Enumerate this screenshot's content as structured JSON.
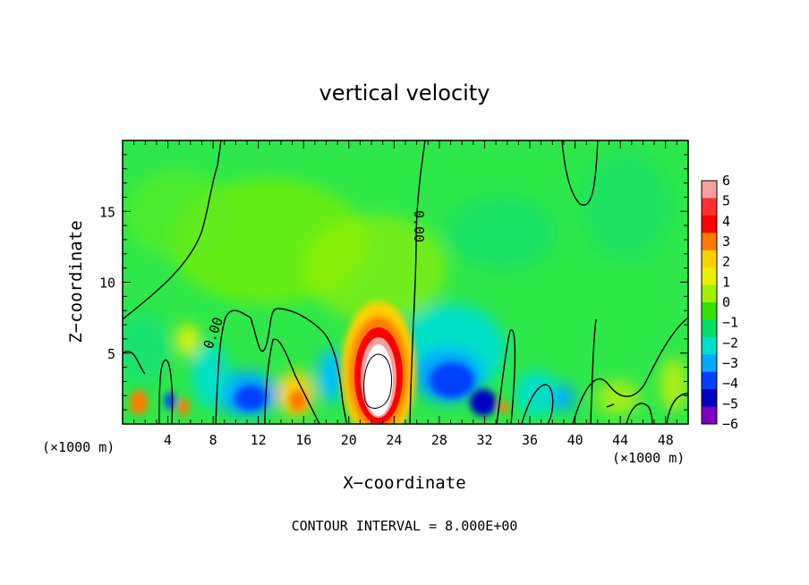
{
  "chart_data": {
    "type": "heatmap",
    "title": "vertical velocity",
    "xlabel": "X−coordinate",
    "ylabel": "Z−coordinate",
    "x_units": "(×1000 m)",
    "xlim": [
      0,
      50
    ],
    "ylim": [
      0,
      20
    ],
    "x_ticks": [
      4,
      8,
      12,
      16,
      20,
      24,
      28,
      32,
      36,
      40,
      44,
      48
    ],
    "y_ticks": [
      5,
      10,
      15
    ],
    "contour_interval_label": "CONTOUR INTERVAL = 8.000E+00",
    "contour_line_label": "0.00",
    "colorbar": {
      "levels": [
        6,
        5,
        4,
        3,
        2,
        1,
        0,
        -1,
        -2,
        -3,
        -4,
        -5,
        -6
      ],
      "colors": [
        "#f4a0a0",
        "#ff3030",
        "#ff0000",
        "#ff7a00",
        "#ffd000",
        "#e8f000",
        "#a0f000",
        "#30e000",
        "#00e060",
        "#00e0c8",
        "#00a8ff",
        "#0040ff",
        "#0000c0",
        "#8000c0"
      ]
    },
    "features": [
      {
        "kind": "updraft-core",
        "x": 22.5,
        "z": 3.0,
        "value": ">6"
      },
      {
        "kind": "downdraft",
        "x": 28.5,
        "z": 3.0,
        "value": -5
      },
      {
        "kind": "downdraft",
        "x": 32,
        "z": 1.5,
        "value": -6
      },
      {
        "kind": "downdraft",
        "x": 12,
        "z": 2.0,
        "value": -4
      },
      {
        "kind": "updraft",
        "x": 16,
        "z": 1.5,
        "value": 3
      }
    ]
  }
}
